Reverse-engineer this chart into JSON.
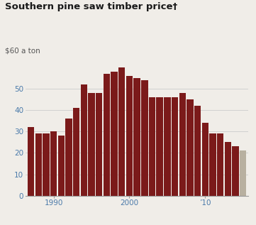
{
  "title": "Southern pine saw timber price†",
  "ylabel": "$60 a ton",
  "years": [
    1987,
    1988,
    1989,
    1990,
    1991,
    1992,
    1993,
    1994,
    1995,
    1996,
    1997,
    1998,
    1999,
    2000,
    2001,
    2002,
    2003,
    2004,
    2005,
    2006,
    2007,
    2008,
    2009,
    2010,
    2011,
    2012,
    2013,
    2014,
    2015
  ],
  "values": [
    32,
    29,
    29,
    30,
    28,
    36,
    41,
    52,
    48,
    48,
    57,
    58,
    60,
    56,
    55,
    54,
    46,
    46,
    46,
    46,
    48,
    45,
    42,
    34,
    29,
    29,
    25,
    23,
    21
  ],
  "bar_color": "#7b1a1a",
  "last_bar_color": "#b8b0a0",
  "background_color": "#f0ede8",
  "grid_color": "#cccccc",
  "tick_label_color": "#4a7aaa",
  "title_color": "#1a1a1a",
  "ylabel_color": "#555555",
  "ylim": [
    0,
    62
  ],
  "yticks": [
    0,
    10,
    20,
    30,
    40,
    50
  ],
  "xtick_labels": [
    "1990",
    "2000",
    "’10"
  ],
  "xtick_positions": [
    1990,
    2000,
    2010
  ]
}
